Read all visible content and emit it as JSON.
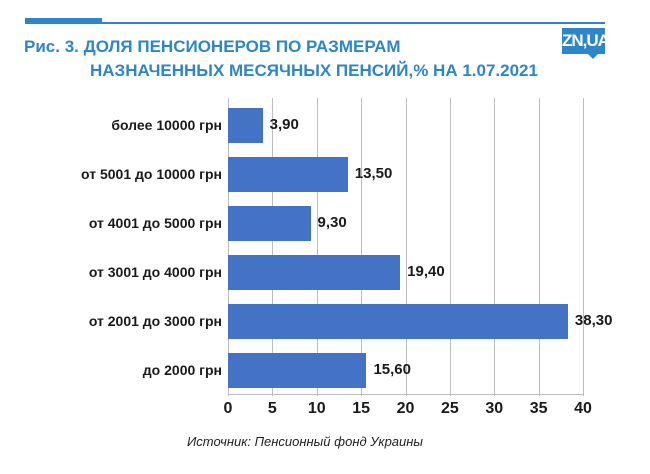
{
  "header": {
    "title_line1": "Рис. 3. ДОЛЯ ПЕНСИОНЕРОВ ПО РАЗМЕРАМ",
    "title_line2": "НАЗНАЧЕННЫХ МЕСЯЧНЫХ ПЕНСИЙ,% НА 1.07.2021",
    "logo": "ZN,UA",
    "accent_color": "#2e86c8"
  },
  "footer": {
    "source": "Источник: Пенсионный фонд Украины"
  },
  "chart_data": {
    "type": "bar",
    "orientation": "horizontal",
    "title": "Рис. 3. ДОЛЯ ПЕНСИОНЕРОВ ПО РАЗМЕРАМ НАЗНАЧЕННЫХ МЕСЯЧНЫХ ПЕНСИЙ,% НА 1.07.2021",
    "categories": [
      "более 10000 грн",
      "от 5001 до 10000 грн",
      "от 4001 до 5000 грн",
      "от 3001 до 4000 грн",
      "от 2001 до 3000 грн",
      "до 2000 грн"
    ],
    "values": [
      3.9,
      13.5,
      9.3,
      19.4,
      38.3,
      15.6
    ],
    "value_labels": [
      "3,90",
      "13,50",
      "9,30",
      "19,40",
      "38,30",
      "15,60"
    ],
    "xlabel": "",
    "ylabel": "",
    "xlim": [
      0,
      40
    ],
    "xticks": [
      "0",
      "5",
      "10",
      "15",
      "20",
      "25",
      "30",
      "35",
      "40"
    ],
    "grid": true,
    "legend": null,
    "bar_color": "#4472c4",
    "source": "Источник: Пенсионный фонд Украины"
  }
}
